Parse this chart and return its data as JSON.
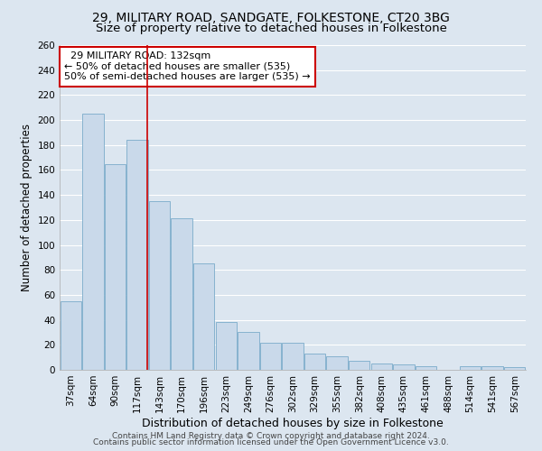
{
  "title1": "29, MILITARY ROAD, SANDGATE, FOLKESTONE, CT20 3BG",
  "title2": "Size of property relative to detached houses in Folkestone",
  "xlabel": "Distribution of detached houses by size in Folkestone",
  "ylabel": "Number of detached properties",
  "categories": [
    "37sqm",
    "64sqm",
    "90sqm",
    "117sqm",
    "143sqm",
    "170sqm",
    "196sqm",
    "223sqm",
    "249sqm",
    "276sqm",
    "302sqm",
    "329sqm",
    "355sqm",
    "382sqm",
    "408sqm",
    "435sqm",
    "461sqm",
    "488sqm",
    "514sqm",
    "541sqm",
    "567sqm"
  ],
  "values": [
    55,
    205,
    165,
    184,
    135,
    121,
    85,
    38,
    30,
    22,
    22,
    13,
    11,
    7,
    5,
    4,
    3,
    0,
    3,
    3,
    2
  ],
  "bar_color": "#c9d9ea",
  "bar_edge_color": "#7aabca",
  "vline_x": 3.45,
  "vline_color": "#cc0000",
  "annotation_text": "  29 MILITARY ROAD: 132sqm\n← 50% of detached houses are smaller (535)\n50% of semi-detached houses are larger (535) →",
  "annotation_box_facecolor": "#ffffff",
  "annotation_box_edgecolor": "#cc0000",
  "background_color": "#dce6f0",
  "plot_bg_color": "#dce6f0",
  "footer1": "Contains HM Land Registry data © Crown copyright and database right 2024.",
  "footer2": "Contains public sector information licensed under the Open Government Licence v3.0.",
  "ylim": [
    0,
    260
  ],
  "yticks": [
    0,
    20,
    40,
    60,
    80,
    100,
    120,
    140,
    160,
    180,
    200,
    220,
    240,
    260
  ],
  "title1_fontsize": 10,
  "title2_fontsize": 9.5,
  "xlabel_fontsize": 9,
  "ylabel_fontsize": 8.5,
  "tick_fontsize": 7.5,
  "annotation_fontsize": 8,
  "footer_fontsize": 6.5
}
